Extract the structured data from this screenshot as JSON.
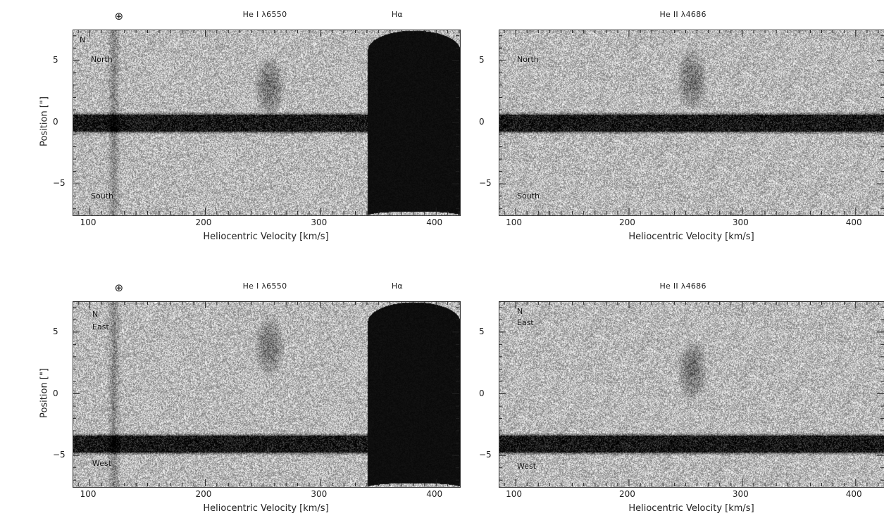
{
  "chart_data": [
    {
      "type": "heatmap",
      "xlabel": "Heliocentric Velocity [km/s]",
      "ylabel": "Position [\"]",
      "xlim": [
        85,
        420
      ],
      "ylim": [
        -7.5,
        7.5
      ],
      "xticks": [
        100,
        200,
        300,
        400
      ],
      "yticks": [
        -5,
        0,
        5
      ],
      "top_labels": [
        "⊕",
        "He I λ6550",
        "Hα"
      ],
      "top_label_x": [
        125,
        255,
        365
      ],
      "annotations": [
        "N",
        "North",
        "South"
      ],
      "features": [
        {
          "kind": "continuum_band",
          "y": 0.0
        },
        {
          "kind": "sky_line",
          "x": 120
        },
        {
          "kind": "emission",
          "x": 255,
          "y": 3.0
        },
        {
          "kind": "saturated_line",
          "x_from": 340,
          "x_to": 420
        }
      ]
    },
    {
      "type": "heatmap",
      "xlabel": "Heliocentric Velocity [km/s]",
      "ylabel": "",
      "xlim": [
        85,
        425
      ],
      "ylim": [
        -7.5,
        7.5
      ],
      "xticks": [
        100,
        200,
        300,
        400
      ],
      "yticks": [
        -5,
        0,
        5
      ],
      "top_labels": [
        "He II λ4686"
      ],
      "top_label_x": [
        250
      ],
      "annotations": [
        "North",
        "South"
      ],
      "features": [
        {
          "kind": "continuum_band",
          "y": 0.0
        },
        {
          "kind": "emission",
          "x": 255,
          "y": 3.5
        }
      ]
    },
    {
      "type": "heatmap",
      "xlabel": "Heliocentric Velocity [km/s]",
      "ylabel": "Position [\"]",
      "xlim": [
        85,
        420
      ],
      "ylim": [
        -7.5,
        7.5
      ],
      "xticks": [
        100,
        200,
        300,
        400
      ],
      "yticks": [
        -5,
        0,
        5
      ],
      "top_labels": [
        "⊕",
        "He I λ6550",
        "Hα"
      ],
      "top_label_x": [
        125,
        255,
        365
      ],
      "annotations": [
        "N",
        "East",
        "West"
      ],
      "features": [
        {
          "kind": "continuum_band",
          "y": -4.0
        },
        {
          "kind": "sky_line",
          "x": 120
        },
        {
          "kind": "emission",
          "x": 255,
          "y": 4.0
        },
        {
          "kind": "saturated_line",
          "x_from": 340,
          "x_to": 420
        }
      ]
    },
    {
      "type": "heatmap",
      "xlabel": "Heliocentric Velocity [km/s]",
      "ylabel": "",
      "xlim": [
        85,
        425
      ],
      "ylim": [
        -7.5,
        7.5
      ],
      "xticks": [
        100,
        200,
        300,
        400
      ],
      "yticks": [
        -5,
        0,
        5
      ],
      "top_labels": [
        "He II λ4686"
      ],
      "top_label_x": [
        250
      ],
      "annotations": [
        "N",
        "East",
        "West"
      ],
      "features": [
        {
          "kind": "continuum_band",
          "y": -4.0
        },
        {
          "kind": "emission",
          "x": 255,
          "y": 2.0
        }
      ]
    }
  ]
}
